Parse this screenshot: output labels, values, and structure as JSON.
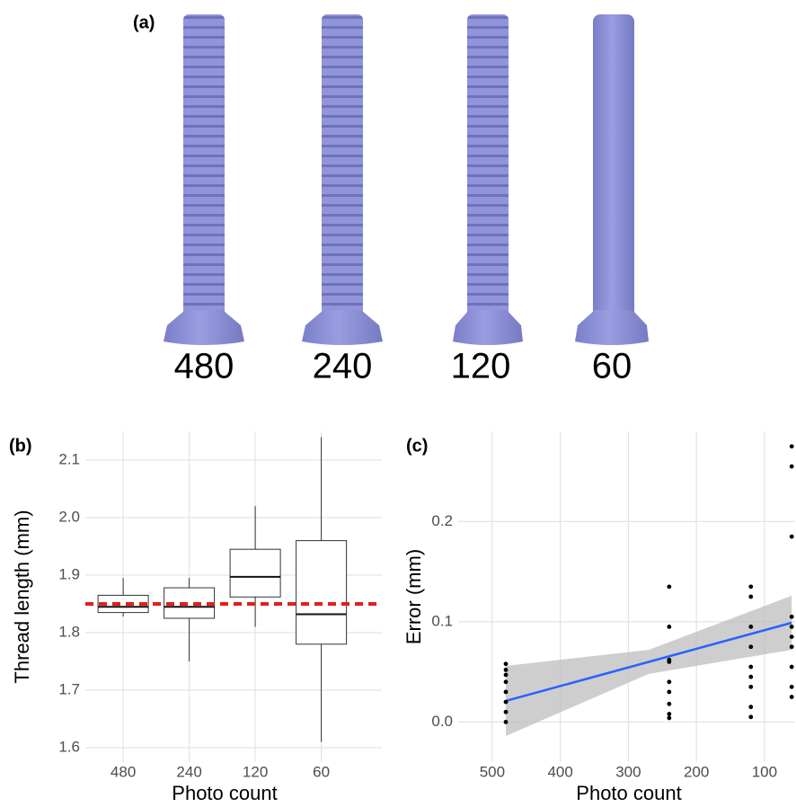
{
  "panel_a": {
    "label": "(a)",
    "captions": [
      "480",
      "240",
      "120",
      "60"
    ]
  },
  "chart_data": [
    {
      "type": "box",
      "panel_label": "(b)",
      "x_label": "Photo count",
      "y_label": "Thread length (mm)",
      "categories": [
        "480",
        "240",
        "120",
        "60"
      ],
      "whisker_low": [
        1.828,
        1.75,
        1.81,
        1.61
      ],
      "q1": [
        1.835,
        1.825,
        1.862,
        1.78
      ],
      "median": [
        1.845,
        1.845,
        1.897,
        1.832
      ],
      "q3": [
        1.865,
        1.878,
        1.945,
        1.96
      ],
      "whisker_high": [
        1.895,
        1.895,
        2.02,
        2.14
      ],
      "reference_line": 1.85,
      "reference_color": "#e0201b",
      "ylim": [
        1.575,
        2.15
      ],
      "yticks": [
        1.6,
        1.7,
        1.8,
        1.9,
        {
          "value": 2,
          "label": "2.0"
        },
        2.1
      ],
      "grid": true
    },
    {
      "type": "scatter",
      "panel_label": "(c)",
      "x_label": "Photo count",
      "y_label": "Error (mm)",
      "x": [
        480,
        480,
        480,
        480,
        480,
        480,
        480,
        480,
        240,
        240,
        240,
        240,
        240,
        240,
        240,
        240,
        240,
        120,
        120,
        120,
        120,
        120,
        120,
        120,
        120,
        120,
        60,
        60,
        60,
        60,
        60,
        60,
        60,
        60,
        60,
        60
      ],
      "values": [
        0.058,
        0.052,
        0.047,
        0.04,
        0.03,
        0.02,
        0.01,
        0.0,
        0.135,
        0.095,
        0.062,
        0.06,
        0.04,
        0.03,
        0.018,
        0.008,
        0.004,
        0.135,
        0.125,
        0.095,
        0.075,
        0.055,
        0.045,
        0.035,
        0.015,
        0.005,
        0.275,
        0.255,
        0.185,
        0.105,
        0.095,
        0.085,
        0.075,
        0.055,
        0.035,
        0.025
      ],
      "color": "#000000",
      "fit": {
        "x": [
          480,
          270,
          60
        ],
        "values": [
          0.021,
          0.06,
          0.099
        ],
        "lower": [
          -0.014,
          0.048,
          0.072
        ],
        "upper": [
          0.056,
          0.072,
          0.126
        ],
        "color": "#2962ff",
        "band_color": "#bdbdbd"
      },
      "xlim": [
        550,
        55
      ],
      "xticks": [
        500,
        400,
        300,
        200,
        100
      ],
      "ylim": [
        -0.04,
        0.29
      ],
      "yticks": [
        {
          "value": 0,
          "label": "0.0"
        },
        0.1,
        0.2
      ],
      "grid": true
    }
  ]
}
